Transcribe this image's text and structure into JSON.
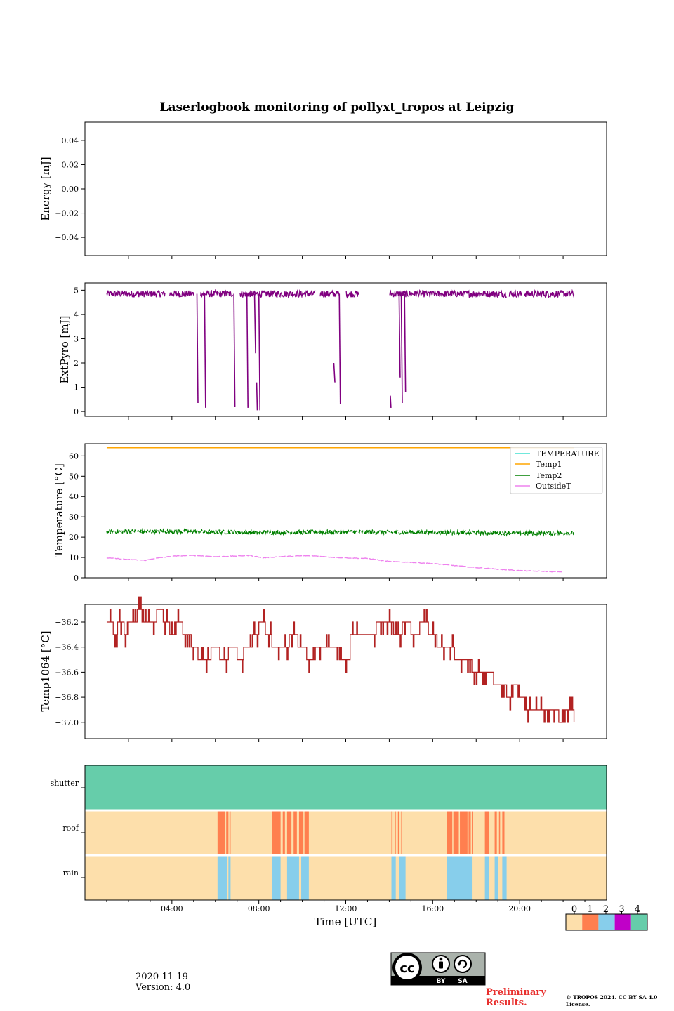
{
  "title": "Laserlogbook monitoring of pollyxt_tropos at Leipzig",
  "colors": {
    "extpyro": "#800080",
    "temperature": "#40e0d0",
    "temp1": "#ffa500",
    "temp2": "#008000",
    "outsideT": "#ee82ee",
    "temp1064": "#b22222",
    "status0": "#fddfab",
    "status1": "#ff7f4f",
    "status2": "#87ceeb",
    "status3": "#c000c8",
    "status4": "#66cdaa"
  },
  "chart_data": [
    {
      "type": "line",
      "id": "energy",
      "ylabel": "Energy [mJ]",
      "ylim": [
        -0.055,
        0.055
      ],
      "yticks": [
        0.04,
        0.02,
        0.0,
        -0.02,
        -0.04
      ],
      "ytick_labels": [
        "0.04",
        "0.02",
        "0.00",
        "−0.02",
        "−0.04"
      ],
      "series": []
    },
    {
      "type": "line",
      "id": "extpyro",
      "ylabel": "ExtPyro [mJ]",
      "ylim": [
        -0.2,
        5.3
      ],
      "yticks": [
        5,
        4,
        3,
        2,
        1,
        0
      ],
      "ytick_labels": [
        "5",
        "4",
        "3",
        "2",
        "1",
        "0"
      ],
      "series": [
        {
          "name": "ExtPyro",
          "baseline": 4.85,
          "start_h": 1.0,
          "end_h": 22.5,
          "gaps_h": [
            [
              3.7,
              3.9
            ],
            [
              5.0,
              5.3
            ],
            [
              6.8,
              7.1
            ],
            [
              10.6,
              10.8
            ],
            [
              11.7,
              12.0
            ],
            [
              12.6,
              14.0
            ],
            [
              19.4,
              19.5
            ],
            [
              20.1,
              20.2
            ]
          ],
          "drops": [
            {
              "t": 5.2,
              "low": 0.35
            },
            {
              "t": 5.55,
              "low": 0.15
            },
            {
              "t": 6.9,
              "low": 0.2
            },
            {
              "t": 7.5,
              "low": 0.15
            },
            {
              "t": 7.85,
              "low": 2.4
            },
            {
              "t": 8.05,
              "low": 0.05
            },
            {
              "t": 11.75,
              "low": 0.3
            },
            {
              "t": 14.5,
              "low": 1.4
            },
            {
              "t": 14.6,
              "low": 0.35
            },
            {
              "t": 14.75,
              "low": 0.8
            }
          ],
          "fragments": [
            {
              "t0": 11.45,
              "t1": 11.5,
              "v0": 2.0,
              "v1": 1.2
            },
            {
              "t0": 14.05,
              "t1": 14.08,
              "v0": 0.65,
              "v1": 0.15
            },
            {
              "t0": 7.9,
              "t1": 7.93,
              "v0": 1.2,
              "v1": 0.05
            }
          ]
        }
      ]
    },
    {
      "type": "line",
      "id": "temperature",
      "ylabel": "Temperature [°C]",
      "ylim": [
        0,
        66
      ],
      "yticks": [
        60,
        50,
        40,
        30,
        20,
        10,
        0
      ],
      "ytick_labels": [
        "60",
        "50",
        "40",
        "30",
        "20",
        "10",
        "0"
      ],
      "legend": [
        "TEMPERATURE",
        "Temp1",
        "Temp2",
        "OutsideT"
      ],
      "legend_position": "top-right",
      "series": [
        {
          "name": "TEMPERATURE",
          "values": []
        },
        {
          "name": "Temp1",
          "x": [
            1.0,
            22.5
          ],
          "values": [
            64,
            64
          ]
        },
        {
          "name": "Temp2",
          "x": [
            1.0,
            4.0,
            8.0,
            12.0,
            16.0,
            20.0,
            22.5
          ],
          "values": [
            22.7,
            22.8,
            22.3,
            22.5,
            22.4,
            22.0,
            22.0
          ]
        },
        {
          "name": "OutsideT",
          "x": [
            1.0,
            2.0,
            2.8,
            3.2,
            4.0,
            5.0,
            6.0,
            7.0,
            7.6,
            8.2,
            9.0,
            10.0,
            10.5,
            11.5,
            12.0,
            13.0,
            14.0,
            15.0,
            16.0,
            17.0,
            18.0,
            19.0,
            20.0,
            21.0,
            22.0
          ],
          "values": [
            9.8,
            9.0,
            8.6,
            9.5,
            10.6,
            11.0,
            10.4,
            10.7,
            11.0,
            9.8,
            10.4,
            10.8,
            10.8,
            10.0,
            9.8,
            9.5,
            8.0,
            7.6,
            7.0,
            6.0,
            5.0,
            4.2,
            3.5,
            3.2,
            2.8
          ]
        }
      ]
    },
    {
      "type": "line",
      "id": "temp1064",
      "ylabel": "Temp1064 [°C]",
      "ylim": [
        -37.13,
        -36.06
      ],
      "yticks": [
        -36.2,
        -36.4,
        -36.6,
        -36.8,
        -37.0
      ],
      "ytick_labels": [
        "−36.2",
        "−36.4",
        "−36.6",
        "−36.8",
        "−37.0"
      ],
      "series": [
        {
          "name": "Temp1064",
          "x": [
            1.0,
            1.3,
            1.5,
            1.8,
            2.0,
            2.4,
            2.7,
            3.0,
            3.3,
            3.6,
            3.9,
            4.2,
            4.5,
            4.9,
            5.2,
            5.5,
            5.8,
            6.2,
            6.6,
            7.0,
            7.3,
            7.7,
            8.0,
            8.3,
            8.6,
            9.0,
            9.4,
            9.8,
            10.2,
            10.6,
            11.0,
            11.4,
            11.8,
            12.2,
            12.6,
            13.0,
            13.4,
            13.8,
            14.2,
            14.6,
            15.0,
            15.4,
            15.8,
            16.2,
            16.6,
            17.0,
            17.4,
            17.8,
            18.2,
            18.5,
            18.8,
            19.1,
            19.4,
            19.7,
            20.0,
            20.3,
            20.6,
            20.9,
            21.2,
            21.5,
            21.8,
            22.1,
            22.5
          ],
          "values": [
            -36.2,
            -36.3,
            -36.2,
            -36.3,
            -36.2,
            -36.1,
            -36.2,
            -36.2,
            -36.1,
            -36.2,
            -36.3,
            -36.2,
            -36.3,
            -36.4,
            -36.5,
            -36.5,
            -36.4,
            -36.5,
            -36.4,
            -36.5,
            -36.4,
            -36.3,
            -36.2,
            -36.3,
            -36.4,
            -36.4,
            -36.3,
            -36.4,
            -36.5,
            -36.4,
            -36.4,
            -36.4,
            -36.5,
            -36.3,
            -36.3,
            -36.3,
            -36.2,
            -36.2,
            -36.3,
            -36.2,
            -36.3,
            -36.2,
            -36.3,
            -36.4,
            -36.4,
            -36.5,
            -36.5,
            -36.6,
            -36.6,
            -36.6,
            -36.7,
            -36.7,
            -36.8,
            -36.7,
            -36.8,
            -36.9,
            -36.9,
            -36.9,
            -36.9,
            -36.9,
            -37.0,
            -36.9,
            -37.0
          ]
        }
      ]
    },
    {
      "type": "heatmap",
      "id": "status",
      "xlabel": "Time [UTC]",
      "xlim_h": [
        0,
        24
      ],
      "xticks": [
        "04:00",
        "08:00",
        "12:00",
        "16:00",
        "20:00"
      ],
      "rows": [
        "shutter",
        "roof",
        "rain"
      ],
      "rows_data": {
        "shutter": {
          "base": 4,
          "segments": []
        },
        "roof": {
          "base": 0,
          "segments": [
            {
              "t0": 6.1,
              "t1": 6.45,
              "v": 1
            },
            {
              "t0": 6.5,
              "t1": 6.6,
              "v": 1
            },
            {
              "t0": 6.65,
              "t1": 6.7,
              "v": 1
            },
            {
              "t0": 8.6,
              "t1": 9.0,
              "v": 1
            },
            {
              "t0": 9.1,
              "t1": 9.2,
              "v": 1
            },
            {
              "t0": 9.3,
              "t1": 9.5,
              "v": 1
            },
            {
              "t0": 9.6,
              "t1": 9.75,
              "v": 1
            },
            {
              "t0": 9.85,
              "t1": 10.05,
              "v": 1
            },
            {
              "t0": 10.1,
              "t1": 10.3,
              "v": 1
            },
            {
              "t0": 14.1,
              "t1": 14.15,
              "v": 1
            },
            {
              "t0": 14.25,
              "t1": 14.3,
              "v": 1
            },
            {
              "t0": 14.4,
              "t1": 14.45,
              "v": 1
            },
            {
              "t0": 14.55,
              "t1": 14.6,
              "v": 1
            },
            {
              "t0": 16.65,
              "t1": 16.9,
              "v": 1
            },
            {
              "t0": 16.95,
              "t1": 17.2,
              "v": 1
            },
            {
              "t0": 17.25,
              "t1": 17.6,
              "v": 1
            },
            {
              "t0": 17.65,
              "t1": 17.75,
              "v": 1
            },
            {
              "t0": 17.8,
              "t1": 17.85,
              "v": 1
            },
            {
              "t0": 18.4,
              "t1": 18.6,
              "v": 1
            },
            {
              "t0": 18.85,
              "t1": 18.95,
              "v": 1
            },
            {
              "t0": 19.05,
              "t1": 19.1,
              "v": 1
            },
            {
              "t0": 19.2,
              "t1": 19.3,
              "v": 1
            }
          ]
        },
        "rain": {
          "base": 0,
          "segments": [
            {
              "t0": 6.1,
              "t1": 6.55,
              "v": 2
            },
            {
              "t0": 6.6,
              "t1": 6.7,
              "v": 2
            },
            {
              "t0": 8.6,
              "t1": 9.0,
              "v": 2
            },
            {
              "t0": 9.3,
              "t1": 9.85,
              "v": 2
            },
            {
              "t0": 9.95,
              "t1": 10.3,
              "v": 2
            },
            {
              "t0": 14.1,
              "t1": 14.3,
              "v": 2
            },
            {
              "t0": 14.45,
              "t1": 14.75,
              "v": 2
            },
            {
              "t0": 16.65,
              "t1": 17.8,
              "v": 2
            },
            {
              "t0": 18.4,
              "t1": 18.6,
              "v": 2
            },
            {
              "t0": 18.85,
              "t1": 19.0,
              "v": 2
            },
            {
              "t0": 19.2,
              "t1": 19.4,
              "v": 2
            }
          ]
        }
      },
      "colorbar_ticks": [
        "0",
        "1",
        "2",
        "3",
        "4"
      ]
    }
  ],
  "footer": {
    "date": "2020-11-19",
    "version": "Version: 4.0",
    "license_badge_by": "BY",
    "license_badge_sa": "SA",
    "preliminary": "Preliminary Results.",
    "copyright": "© TROPOS 2024. CC BY SA 4.0 License."
  }
}
